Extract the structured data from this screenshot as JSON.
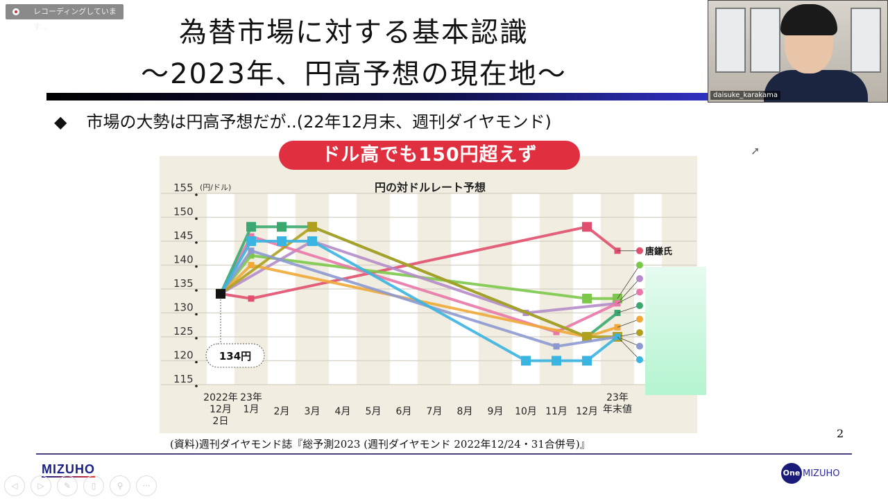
{
  "recording": {
    "label": "レコーディングしています..."
  },
  "slide": {
    "title_line1": "為替市場に対する基本認識",
    "title_line2": "～2023年、円高予想の現在地～",
    "bullet": "市場の大勢は円高予想だが..(22年12月末、週刊ダイヤモンド)",
    "source": "(資料)週刊ダイヤモンド誌『総予測2023 (週刊ダイヤモンド 2022年12/24・31合併号)』",
    "page_number": "2",
    "logo_left": "MIZUHO",
    "logo_right_badge": "One",
    "logo_right_text": "MIZUHO"
  },
  "webcam": {
    "name": "daisuke_karakama"
  },
  "controls": [
    "prev",
    "next",
    "pen",
    "pointer",
    "zoom",
    "more"
  ],
  "chart_data": {
    "type": "line",
    "banner": "ドル高でも150円超えず",
    "title": "円の対ドルレート予想",
    "ylabel": "(円/ドル)",
    "ylim": [
      115,
      155
    ],
    "yticks": [
      155,
      150,
      145,
      140,
      135,
      130,
      125,
      120,
      115
    ],
    "categories": [
      "2022年\n12月\n2日",
      "23年\n1月",
      "2月",
      "3月",
      "4月",
      "5月",
      "6月",
      "7月",
      "8月",
      "9月",
      "10月",
      "11月",
      "12月",
      "23年\n年末値"
    ],
    "start_value": 134,
    "start_label": "134円",
    "grid": true,
    "series": [
      {
        "name": "唐鎌氏",
        "color": "#e0506e",
        "points": [
          [
            0,
            134
          ],
          [
            1,
            133
          ],
          [
            12,
            148
          ],
          [
            13,
            143
          ]
        ]
      },
      {
        "color": "#7cc84a",
        "points": [
          [
            0,
            134
          ],
          [
            1,
            142
          ],
          [
            12,
            133
          ],
          [
            13,
            133
          ]
        ]
      },
      {
        "color": "#b48cc8",
        "points": [
          [
            0,
            134
          ],
          [
            3,
            145
          ],
          [
            10,
            130
          ],
          [
            13,
            132
          ]
        ]
      },
      {
        "color": "#e878a8",
        "points": [
          [
            0,
            134
          ],
          [
            1,
            146
          ],
          [
            11,
            126
          ],
          [
            13,
            132
          ]
        ]
      },
      {
        "color": "#3aa870",
        "points": [
          [
            0,
            134
          ],
          [
            1,
            148
          ],
          [
            2,
            148
          ],
          [
            3,
            148
          ],
          [
            12,
            125
          ],
          [
            13,
            130
          ]
        ]
      },
      {
        "color": "#f0a838",
        "points": [
          [
            0,
            134
          ],
          [
            1,
            140
          ],
          [
            12,
            125
          ],
          [
            13,
            127
          ]
        ]
      },
      {
        "color": "#b0a020",
        "points": [
          [
            0,
            134
          ],
          [
            3,
            148
          ],
          [
            12,
            125
          ],
          [
            13,
            125
          ]
        ]
      },
      {
        "color": "#8c9ad0",
        "points": [
          [
            0,
            134
          ],
          [
            1,
            143
          ],
          [
            11,
            123
          ],
          [
            13,
            125
          ]
        ]
      },
      {
        "color": "#3ab4e0",
        "points": [
          [
            0,
            134
          ],
          [
            1,
            145
          ],
          [
            2,
            145
          ],
          [
            3,
            145
          ],
          [
            10,
            120
          ],
          [
            11,
            120
          ],
          [
            12,
            120
          ],
          [
            13,
            125
          ]
        ]
      }
    ]
  }
}
